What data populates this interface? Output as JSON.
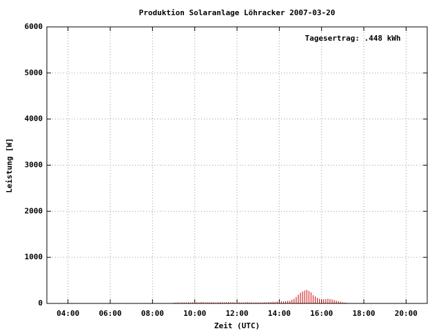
{
  "chart_data": {
    "type": "impulse",
    "title": "Produktion Solaranlage Löhracker 2007-03-20",
    "annotation": "Tagesertrag: .448 kWh",
    "xlabel": "Zeit (UTC)",
    "ylabel": "Leistung [W]",
    "xlim": [
      3,
      21
    ],
    "ylim": [
      0,
      6000
    ],
    "xticks": [
      {
        "value": 4,
        "label": "04:00"
      },
      {
        "value": 6,
        "label": "06:00"
      },
      {
        "value": 8,
        "label": "08:00"
      },
      {
        "value": 10,
        "label": "10:00"
      },
      {
        "value": 12,
        "label": "12:00"
      },
      {
        "value": 14,
        "label": "14:00"
      },
      {
        "value": 16,
        "label": "16:00"
      },
      {
        "value": 18,
        "label": "18:00"
      },
      {
        "value": 20,
        "label": "20:00"
      }
    ],
    "yticks": [
      0,
      1000,
      2000,
      3000,
      4000,
      5000,
      6000
    ],
    "grid": true,
    "color": "#cc0000",
    "x": [
      9,
      9.1,
      9.2,
      9.3,
      9.4,
      9.5,
      9.6,
      9.7,
      9.8,
      9.9,
      10,
      10.1,
      10.2,
      10.3,
      10.4,
      10.5,
      10.6,
      10.7,
      10.8,
      10.9,
      11,
      11.1,
      11.2,
      11.3,
      11.4,
      11.5,
      11.6,
      11.7,
      11.8,
      11.9,
      12,
      12.1,
      12.2,
      12.3,
      12.4,
      12.5,
      12.6,
      12.7,
      12.8,
      12.9,
      13,
      13.1,
      13.2,
      13.3,
      13.4,
      13.5,
      13.6,
      13.7,
      13.8,
      13.9,
      14,
      14.1,
      14.2,
      14.3,
      14.4,
      14.5,
      14.6,
      14.7,
      14.8,
      14.9,
      15,
      15.1,
      15.2,
      15.3,
      15.4,
      15.5,
      15.6,
      15.7,
      15.8,
      15.9,
      16,
      16.1,
      16.2,
      16.3,
      16.4,
      16.5,
      16.6,
      16.7,
      16.8,
      16.9,
      17,
      17.1,
      17.2,
      17.3
    ],
    "values": [
      15,
      18,
      20,
      17,
      22,
      20,
      18,
      25,
      20,
      22,
      24,
      26,
      22,
      28,
      25,
      20,
      23,
      26,
      24,
      22,
      20,
      25,
      27,
      24,
      22,
      26,
      28,
      25,
      23,
      20,
      22,
      24,
      20,
      18,
      22,
      25,
      23,
      20,
      18,
      22,
      20,
      18,
      22,
      25,
      20,
      28,
      30,
      35,
      32,
      40,
      38,
      45,
      42,
      50,
      55,
      60,
      80,
      100,
      140,
      190,
      230,
      260,
      280,
      295,
      270,
      240,
      180,
      150,
      120,
      100,
      80,
      90,
      95,
      100,
      95,
      85,
      70,
      60,
      45,
      35,
      25,
      18,
      12,
      8
    ]
  }
}
